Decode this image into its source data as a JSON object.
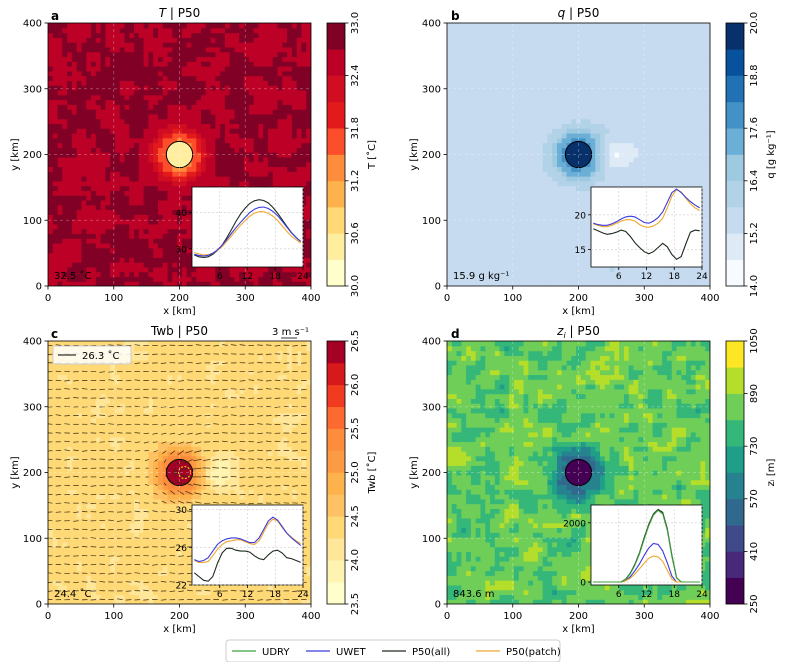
{
  "legend": {
    "items": [
      {
        "label": "UDRY",
        "color": "#3aa03a"
      },
      {
        "label": "UWET",
        "color": "#3a3adc"
      },
      {
        "label": "P50(all)",
        "color": "#1d2b1d"
      },
      {
        "label": "P50(patch)",
        "color": "#f0a830"
      }
    ]
  },
  "chart_data": [
    {
      "type": "heatmap",
      "panel": "a",
      "title_var": "T",
      "title_suffix": " | P50",
      "xlabel": "x [km]",
      "ylabel": "y [km]",
      "xlim": [
        0,
        400
      ],
      "ylim": [
        0,
        400
      ],
      "xticks": [
        "0",
        "100",
        "200",
        "300",
        "400"
      ],
      "yticks": [
        "0",
        "100",
        "200",
        "300",
        "400"
      ],
      "colorbar": {
        "label": "T [˚C]",
        "ticks": [
          "30.0",
          "30.6",
          "31.2",
          "31.8",
          "32.4",
          "33.0"
        ],
        "levels": 10,
        "range": [
          30.0,
          33.0
        ],
        "cmap": "YlOrRd"
      },
      "base_value": 32.7,
      "patch_value": 30.5,
      "mean_annotation": "32.5 ˚C",
      "patch": {
        "cx": 200,
        "cy": 200,
        "r": 20
      },
      "inset": {
        "xticks": [
          "6",
          "12",
          "18",
          "24"
        ],
        "yticks": [
          "30",
          "40"
        ],
        "xrange": [
          0,
          24
        ],
        "yrange": [
          25,
          47
        ],
        "series": [
          {
            "name": "P50(all)",
            "values": [
              28.3,
              27.8,
              27.6,
              27.8,
              28.5,
              29.5,
              31,
              33,
              35.2,
              37.5,
              39.6,
              41.2,
              42.5,
              43.2,
              43.5,
              43.3,
              42.6,
              41.4,
              39.8,
              38,
              36.2,
              34.5,
              33.1,
              32
            ]
          },
          {
            "name": "P50(patch)",
            "values": [
              29,
              28.6,
              28.3,
              28.4,
              28.8,
              29.5,
              30.6,
              32,
              33.5,
              35,
              36.5,
              37.8,
              39,
              39.8,
              40.2,
              40.2,
              39.8,
              39,
              37.8,
              36.3,
              34.8,
              33.5,
              32.5,
              31.6
            ]
          },
          {
            "name": "UWET",
            "values": [
              28.5,
              28.2,
              28,
              28.2,
              28.8,
              29.7,
              31,
              32.5,
              34.2,
              35.8,
              37.3,
              38.7,
              40,
              40.9,
              41.4,
              41.5,
              41.1,
              40.3,
              39.1,
              37.6,
              36,
              34.4,
              33.1,
              32
            ]
          }
        ]
      }
    },
    {
      "type": "heatmap",
      "panel": "b",
      "title_var": "q",
      "title_suffix": " | P50",
      "xlabel": "x [km]",
      "ylabel": "y [km]",
      "xlim": [
        0,
        400
      ],
      "ylim": [
        0,
        400
      ],
      "xticks": [
        "0",
        "100",
        "200",
        "300",
        "400"
      ],
      "yticks": [
        "0",
        "100",
        "200",
        "300",
        "400"
      ],
      "colorbar": {
        "label": "q [g kg⁻¹]",
        "ticks": [
          "14.0",
          "15.2",
          "16.4",
          "17.6",
          "18.8",
          "20.0"
        ],
        "levels": 10,
        "range": [
          14.0,
          20.0
        ],
        "cmap": "Blues"
      },
      "base_value": 15.6,
      "patch_value": 19.5,
      "mean_annotation": "15.9 g kg⁻¹",
      "patch": {
        "cx": 200,
        "cy": 200,
        "r": 20
      },
      "inset": {
        "xticks": [
          "6",
          "12",
          "18",
          "24"
        ],
        "yticks": [
          "15",
          "20"
        ],
        "xrange": [
          0,
          24
        ],
        "yrange": [
          12.5,
          24
        ],
        "series": [
          {
            "name": "P50(all)",
            "values": [
              18,
              17.7,
              17.4,
              17.2,
              17.3,
              17.5,
              17.8,
              17.6,
              16.9,
              16,
              15.3,
              14.7,
              14.4,
              14.7,
              15.3,
              15.9,
              15.4,
              14.3,
              13.6,
              14,
              15.8,
              17.5,
              17.8,
              17.7
            ]
          },
          {
            "name": "P50(patch)",
            "values": [
              18.7,
              18.5,
              18.3,
              18.3,
              18.5,
              18.8,
              19.1,
              19.3,
              19.3,
              19.1,
              18.6,
              18.3,
              18.2,
              18.4,
              18.8,
              19.5,
              21,
              22.7,
              23.6,
              23.3,
              22.4,
              21.6,
              21,
              20.6
            ]
          },
          {
            "name": "UWET",
            "values": [
              18.8,
              18.6,
              18.5,
              18.5,
              18.7,
              19,
              19.4,
              19.7,
              19.8,
              19.7,
              19.3,
              18.9,
              18.8,
              19.1,
              19.6,
              20.4,
              21.8,
              23.2,
              23.7,
              23.2,
              22.5,
              21.9,
              21.4,
              21
            ]
          }
        ]
      }
    },
    {
      "type": "heatmap",
      "panel": "c",
      "title_var": "Twb",
      "title_suffix": " | P50",
      "xlabel": "x [km]",
      "ylabel": "y [km]",
      "xlim": [
        0,
        400
      ],
      "ylim": [
        0,
        400
      ],
      "xticks": [
        "0",
        "100",
        "200",
        "300",
        "400"
      ],
      "yticks": [
        "0",
        "100",
        "200",
        "300",
        "400"
      ],
      "colorbar": {
        "label": "Twb [˚C]",
        "ticks": [
          "23.5",
          "24.0",
          "24.5",
          "25.0",
          "25.5",
          "26.0",
          "26.5"
        ],
        "levels": 12,
        "range": [
          23.5,
          26.5
        ],
        "cmap": "YlOrRd"
      },
      "base_value": 24.3,
      "patch_value": 26.3,
      "mean_annotation": "24.4 ˚C",
      "contour_legend": "26.3 ˚C",
      "quiver_key": "3 m s⁻¹",
      "patch": {
        "cx": 200,
        "cy": 200,
        "r": 20
      },
      "inset": {
        "xticks": [
          "6",
          "12",
          "18",
          "24"
        ],
        "yticks": [
          "22",
          "26",
          "30"
        ],
        "xrange": [
          0,
          24
        ],
        "yrange": [
          22,
          30.5
        ],
        "series": [
          {
            "name": "P50(all)",
            "values": [
              23.3,
              22.9,
              22.5,
              22.4,
              22.9,
              24.3,
              25.4,
              25.9,
              25.9,
              25.7,
              25.6,
              25.6,
              25.5,
              25.1,
              24.8,
              24.7,
              25.2,
              25.6,
              25.7,
              25.4,
              24.9,
              24.8,
              24.6,
              24.4
            ]
          },
          {
            "name": "P50(patch)",
            "values": [
              24.6,
              24.4,
              24.4,
              24.5,
              25.1,
              25.8,
              26.3,
              26.6,
              26.7,
              26.8,
              26.8,
              26.6,
              26.4,
              26.3,
              26.7,
              27.6,
              28.5,
              29,
              28.8,
              28.1,
              27.5,
              27.1,
              26.7,
              26.4
            ]
          },
          {
            "name": "UWET",
            "values": [
              24.7,
              24.5,
              24.6,
              24.9,
              25.6,
              26.3,
              26.7,
              26.9,
              27,
              27,
              26.9,
              26.7,
              26.5,
              26.5,
              27,
              27.9,
              28.8,
              29.2,
              28.9,
              28.2,
              27.5,
              27,
              26.6,
              26.2
            ]
          }
        ]
      }
    },
    {
      "type": "heatmap",
      "panel": "d",
      "title_var": "z",
      "title_sub": "i",
      "title_suffix": " | P50",
      "xlabel": "x [km]",
      "ylabel": "y [km]",
      "xlim": [
        0,
        400
      ],
      "ylim": [
        0,
        400
      ],
      "xticks": [
        "0",
        "100",
        "200",
        "300",
        "400"
      ],
      "yticks": [
        "0",
        "100",
        "200",
        "300",
        "400"
      ],
      "colorbar": {
        "label": "zᵢ [m]",
        "ticks": [
          "250",
          "410",
          "570",
          "730",
          "890",
          "1050"
        ],
        "levels": 10,
        "range": [
          250,
          1050
        ],
        "cmap": "viridis"
      },
      "base_value": 840,
      "patch_value": 300,
      "mean_annotation": "843.6 m",
      "patch": {
        "cx": 200,
        "cy": 200,
        "r": 20
      },
      "inset": {
        "xticks": [
          "6",
          "12",
          "18",
          "24"
        ],
        "yticks": [
          "0",
          "2000"
        ],
        "xrange": [
          0,
          24
        ],
        "yrange": [
          -100,
          2600
        ],
        "series": [
          {
            "name": "P50(all)",
            "values": [
              0,
              0,
              0,
              0,
              0,
              0,
              0,
              100,
              300,
              600,
              1000,
              1500,
              1950,
              2300,
              2450,
              2350,
              1800,
              900,
              150,
              0,
              0,
              0,
              0,
              0
            ]
          },
          {
            "name": "UWET",
            "values": [
              0,
              0,
              0,
              0,
              0,
              0,
              0,
              50,
              180,
              380,
              620,
              900,
              1150,
              1300,
              1270,
              1050,
              650,
              200,
              0,
              0,
              0,
              0,
              0,
              0
            ]
          },
          {
            "name": "P50(patch)",
            "values": [
              0,
              0,
              0,
              0,
              0,
              0,
              0,
              40,
              130,
              270,
              450,
              640,
              800,
              880,
              850,
              700,
              400,
              100,
              0,
              0,
              0,
              0,
              0,
              0
            ]
          },
          {
            "name": "UDRY",
            "values": [
              0,
              0,
              0,
              0,
              0,
              0,
              0,
              90,
              280,
              570,
              960,
              1450,
              1900,
              2260,
              2420,
              2300,
              1750,
              860,
              140,
              0,
              0,
              0,
              0,
              0
            ]
          }
        ]
      }
    }
  ]
}
